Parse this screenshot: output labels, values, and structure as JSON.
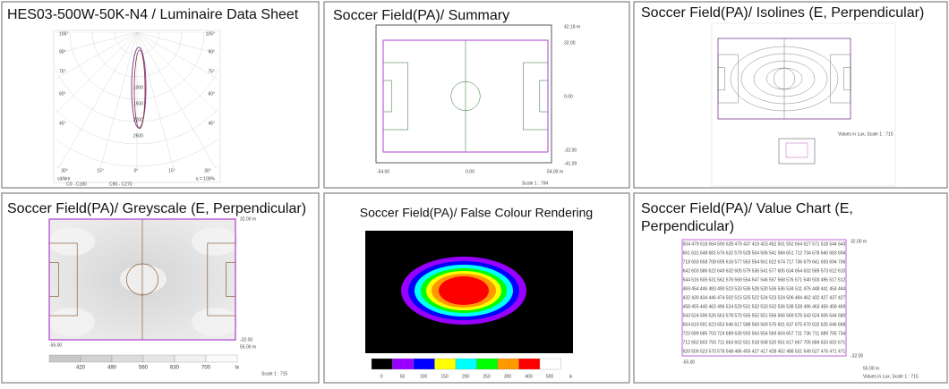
{
  "luminaire": {
    "title": "HES03-500W-50K-N4 / Luminaire Data Sheet",
    "left_angles": [
      "105°",
      "90°",
      "75°",
      "60°",
      "45°"
    ],
    "right_angles": [
      "105°",
      "90°",
      "75°",
      "60°",
      "45°"
    ],
    "bottom_angles": [
      "30°",
      "15°",
      "0°",
      "15°",
      "30°"
    ],
    "radial": [
      "1000",
      "1500",
      "2000",
      "2500"
    ],
    "unit": "cd/klm",
    "eta": "η = 100%",
    "legend": [
      "C0 - C180",
      "C90 - C270"
    ]
  },
  "summary": {
    "title": "Soccer Field(PA)/ Summary",
    "right_labels": [
      "42.18 m",
      "32.00",
      "0.00",
      "-32.00",
      "-41.09"
    ],
    "bottom_labels": [
      "-54.00",
      "0.00",
      "54.00 m"
    ],
    "scale": "Scale 1 : 794"
  },
  "isolines": {
    "title": "Soccer Field(PA)/ Isolines (E, Perpendicular)",
    "note": "Values in Lux, Scale 1 : 715"
  },
  "greyscale": {
    "title": "Soccer Field(PA)/ Greyscale (E, Perpendicular)",
    "labels": [
      "32.00 m",
      "-55.00",
      "-32.00",
      "55.00 m"
    ],
    "legend": [
      "420",
      "490",
      "560",
      "630",
      "700",
      "lx"
    ],
    "legend_colors": [
      "#c8c8c8",
      "#d2d2d2",
      "#dcdcdc",
      "#e6e6e6",
      "#f0f0f0",
      "#fafafa"
    ],
    "scale": "Scale 1 : 715"
  },
  "false_colour": {
    "title": "Soccer Field(PA)/ False Colour Rendering",
    "legend": [
      "0",
      "50",
      "100",
      "150",
      "200",
      "250",
      "300",
      "400",
      "500",
      "lx"
    ],
    "legend_colors": [
      "#000000",
      "#9900ff",
      "#0000ff",
      "#ffff00",
      "#00ffff",
      "#00ff00",
      "#ff9900",
      "#ff0000",
      "#ffffff"
    ]
  },
  "value_chart": {
    "title_lines": [
      "Soccer Field(PA)/ Value Chart (E,",
      "Perpendicular)"
    ],
    "labels": [
      "32.00 m",
      "-55.00",
      "-32.00",
      "55.00 m"
    ],
    "note": "Values in Lux, Scale 1 : 715",
    "rows": [
      [
        "504",
        "479",
        "518",
        "564",
        "590",
        "528",
        "479",
        "437",
        "419",
        "423",
        "452",
        "501",
        "552",
        "654",
        "627",
        "571",
        "518",
        "544",
        "543"
      ],
      [
        "661",
        "631",
        "648",
        "681",
        "676",
        "632",
        "579",
        "528",
        "504",
        "506",
        "541",
        "584",
        "651",
        "712",
        "734",
        "678",
        "640",
        "683",
        "694"
      ],
      [
        "718",
        "693",
        "658",
        "708",
        "695",
        "616",
        "577",
        "563",
        "554",
        "561",
        "622",
        "674",
        "717",
        "736",
        "679",
        "641",
        "693",
        "694",
        "706"
      ],
      [
        "642",
        "603",
        "586",
        "622",
        "649",
        "632",
        "605",
        "579",
        "536",
        "541",
        "577",
        "605",
        "634",
        "654",
        "632",
        "589",
        "573",
        "612",
        "610"
      ],
      [
        "544",
        "516",
        "505",
        "531",
        "562",
        "576",
        "569",
        "554",
        "547",
        "546",
        "557",
        "568",
        "576",
        "571",
        "540",
        "503",
        "495",
        "517",
        "512"
      ],
      [
        "469",
        "454",
        "446",
        "483",
        "490",
        "523",
        "533",
        "536",
        "528",
        "530",
        "536",
        "536",
        "534",
        "511",
        "476",
        "448",
        "441",
        "454",
        "444"
      ],
      [
        "432",
        "430",
        "434",
        "446",
        "474",
        "502",
        "515",
        "525",
        "522",
        "524",
        "523",
        "524",
        "506",
        "484",
        "462",
        "432",
        "427",
        "437",
        "427"
      ],
      [
        "458",
        "455",
        "445",
        "462",
        "496",
        "524",
        "529",
        "531",
        "532",
        "533",
        "532",
        "536",
        "538",
        "528",
        "496",
        "463",
        "456",
        "458",
        "469"
      ],
      [
        "543",
        "524",
        "506",
        "526",
        "563",
        "578",
        "570",
        "556",
        "552",
        "551",
        "556",
        "566",
        "569",
        "576",
        "543",
        "524",
        "506",
        "544",
        "580"
      ],
      [
        "654",
        "619",
        "591",
        "623",
        "653",
        "646",
        "617",
        "588",
        "569",
        "569",
        "575",
        "601",
        "637",
        "675",
        "670",
        "632",
        "625",
        "646",
        "668"
      ],
      [
        "723",
        "689",
        "685",
        "703",
        "724",
        "689",
        "639",
        "593",
        "563",
        "554",
        "569",
        "604",
        "657",
        "711",
        "736",
        "711",
        "689",
        "705",
        "734"
      ],
      [
        "712",
        "662",
        "603",
        "750",
        "711",
        "663",
        "602",
        "551",
        "518",
        "508",
        "520",
        "551",
        "617",
        "667",
        "705",
        "684",
        "633",
        "602",
        "671"
      ],
      [
        "520",
        "509",
        "523",
        "570",
        "578",
        "548",
        "486",
        "455",
        "427",
        "417",
        "428",
        "452",
        "488",
        "531",
        "549",
        "527",
        "476",
        "471",
        "471"
      ]
    ]
  }
}
